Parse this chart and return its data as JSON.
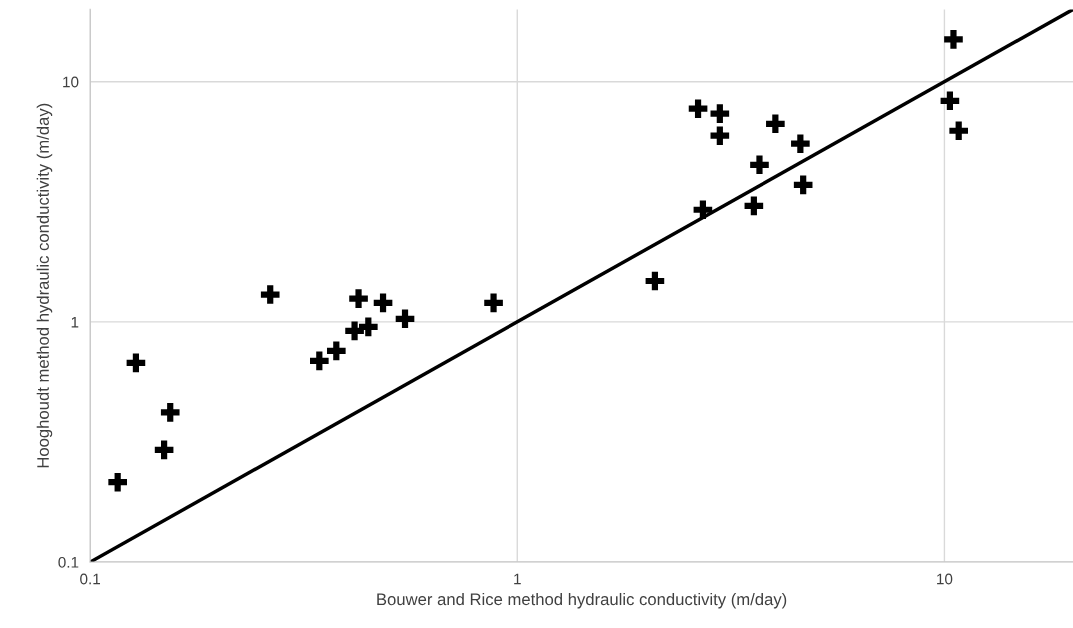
{
  "chart_data": {
    "type": "scatter",
    "xlabel": "Bouwer and Rice method hydraulic conductivity (m/day)",
    "ylabel": "Hooghoudt method hydraulic conductivity (m/day)",
    "log": "xy",
    "xlim": [
      0.1,
      20
    ],
    "ylim": [
      0.1,
      20
    ],
    "xticks": [
      0.1,
      1,
      10
    ],
    "yticks": [
      0.1,
      1,
      10
    ],
    "grid": true,
    "series": [
      {
        "marker": "cross",
        "color": "#000000",
        "x": [
          0.116,
          0.128,
          0.149,
          0.154,
          0.264,
          0.344,
          0.377,
          0.416,
          0.425,
          0.448,
          0.485,
          0.546,
          0.88,
          2.1,
          2.65,
          2.72,
          2.98,
          2.98,
          3.58,
          3.69,
          4.02,
          4.6,
          4.67,
          10.3,
          10.5,
          10.8
        ],
        "values": [
          0.215,
          0.675,
          0.293,
          0.42,
          1.3,
          0.688,
          0.757,
          0.917,
          1.25,
          0.953,
          1.2,
          1.03,
          1.2,
          1.48,
          7.72,
          2.93,
          7.36,
          5.96,
          3.04,
          4.51,
          6.68,
          5.52,
          3.72,
          8.33,
          15.0,
          6.25
        ]
      },
      {
        "type": "line",
        "marker": "none",
        "color": "#000000",
        "x": [
          0.1,
          20
        ],
        "values": [
          0.1,
          20
        ]
      }
    ]
  }
}
